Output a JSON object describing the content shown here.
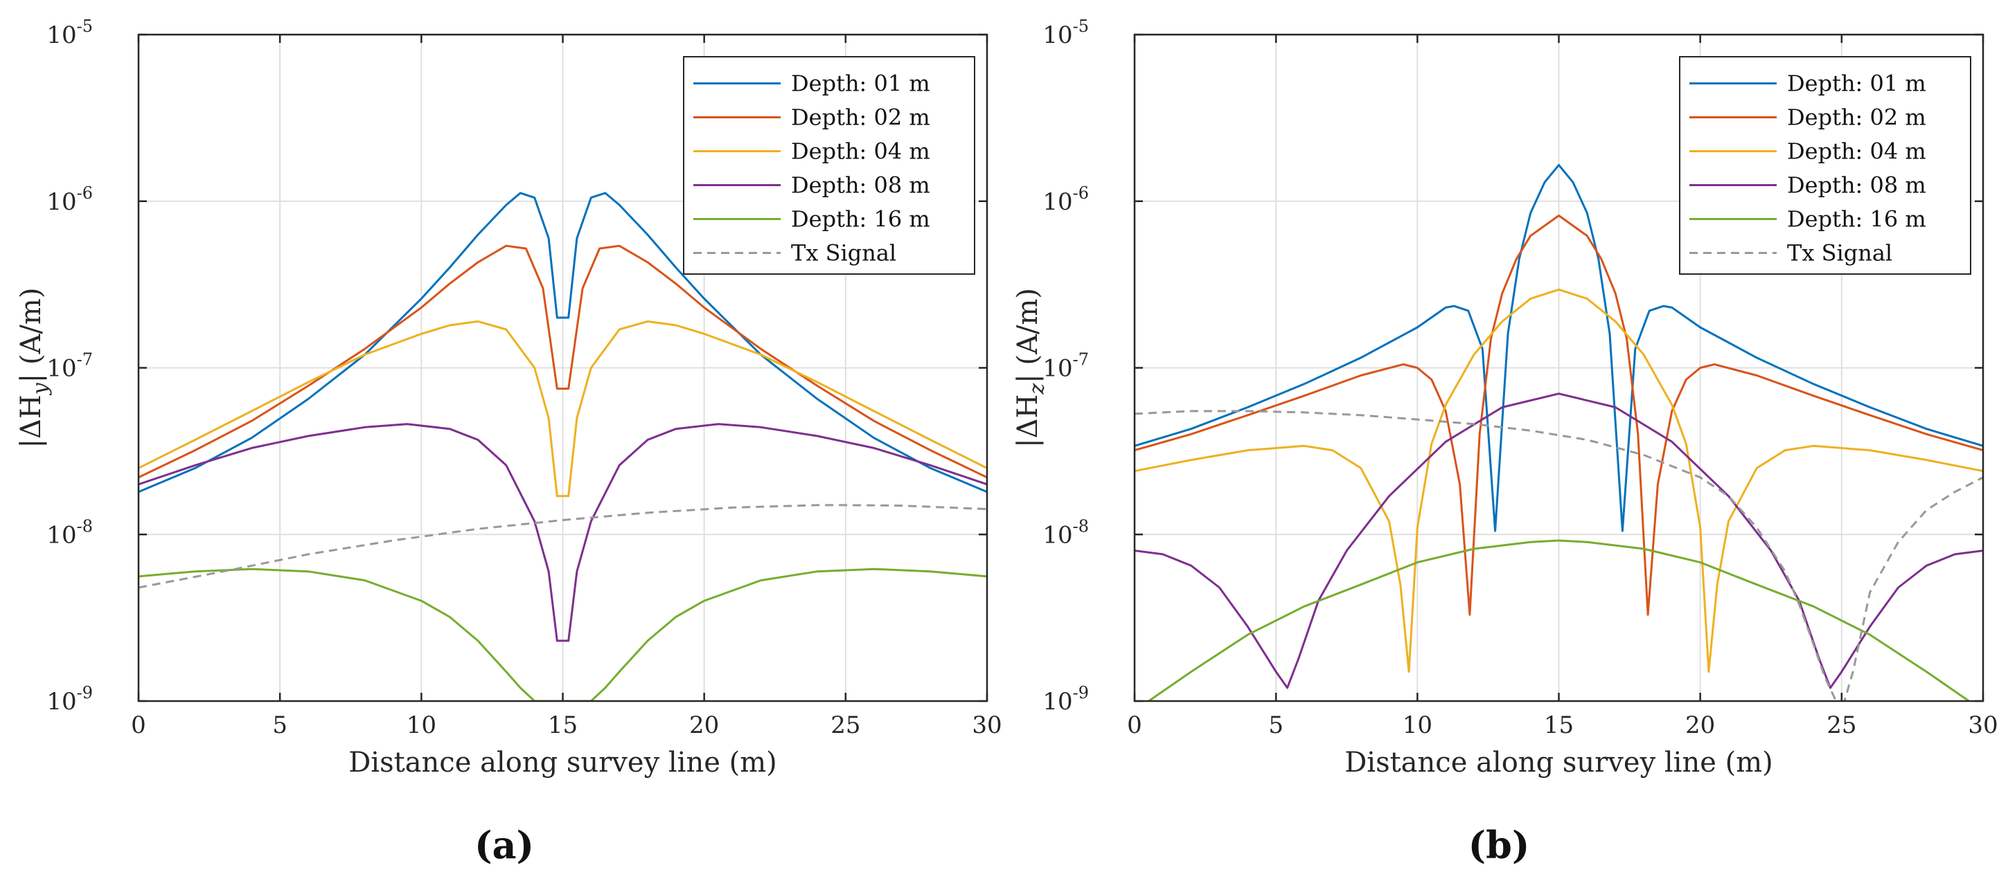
{
  "chart_data": [
    {
      "type": "line",
      "panel_label": "(a)",
      "xlabel": "Distance along survey line (m)",
      "ylabel_text": "|ΔH",
      "ylabel_sub": "y",
      "ylabel_unit": "| (A/m)",
      "xlim": [
        0,
        30
      ],
      "ylim": [
        1e-09,
        1e-05
      ],
      "yscale": "log",
      "grid": true,
      "legend": "top-right",
      "xticks": [
        "0",
        "5",
        "10",
        "15",
        "20",
        "25",
        "30"
      ],
      "yticks": [
        {
          "base": "10",
          "exp": "-9"
        },
        {
          "base": "10",
          "exp": "-8"
        },
        {
          "base": "10",
          "exp": "-7"
        },
        {
          "base": "10",
          "exp": "-6"
        },
        {
          "base": "10",
          "exp": "-5"
        }
      ],
      "series": [
        {
          "name": "Depth: 01 m",
          "color": "#0072BD",
          "dash": false,
          "x": [
            0,
            2,
            4,
            6,
            8,
            10,
            11,
            12,
            13,
            13.5,
            14,
            14.5,
            14.8,
            15.2,
            15.5,
            16,
            16.5,
            17,
            18,
            19,
            20,
            22,
            24,
            26,
            28,
            30
          ],
          "y": [
            1.8e-08,
            2.5e-08,
            3.8e-08,
            6.5e-08,
            1.2e-07,
            2.6e-07,
            4e-07,
            6.3e-07,
            9.5e-07,
            1.12e-06,
            1.05e-06,
            6e-07,
            2e-07,
            2e-07,
            6e-07,
            1.05e-06,
            1.12e-06,
            9.5e-07,
            6.3e-07,
            4e-07,
            2.6e-07,
            1.2e-07,
            6.5e-08,
            3.8e-08,
            2.5e-08,
            1.8e-08
          ]
        },
        {
          "name": "Depth: 02 m",
          "color": "#D95319",
          "dash": false,
          "x": [
            0,
            2,
            4,
            6,
            8,
            10,
            11,
            12,
            13,
            13.7,
            14.3,
            14.8,
            15.2,
            15.7,
            16.3,
            17,
            18,
            19,
            20,
            22,
            24,
            26,
            28,
            30
          ],
          "y": [
            2.2e-08,
            3.2e-08,
            4.8e-08,
            7.8e-08,
            1.3e-07,
            2.3e-07,
            3.2e-07,
            4.3e-07,
            5.4e-07,
            5.2e-07,
            3e-07,
            7.5e-08,
            7.5e-08,
            3e-07,
            5.2e-07,
            5.4e-07,
            4.3e-07,
            3.2e-07,
            2.3e-07,
            1.3e-07,
            7.8e-08,
            4.8e-08,
            3.2e-08,
            2.2e-08
          ]
        },
        {
          "name": "Depth: 04 m",
          "color": "#EDB120",
          "dash": false,
          "x": [
            0,
            2,
            4,
            6,
            8,
            10,
            11,
            12,
            13,
            14,
            14.5,
            14.8,
            15.2,
            15.5,
            16,
            17,
            18,
            19,
            20,
            22,
            24,
            26,
            28,
            30
          ],
          "y": [
            2.5e-08,
            3.7e-08,
            5.5e-08,
            8.2e-08,
            1.2e-07,
            1.6e-07,
            1.8e-07,
            1.9e-07,
            1.7e-07,
            1e-07,
            5e-08,
            1.7e-08,
            1.7e-08,
            5e-08,
            1e-07,
            1.7e-07,
            1.9e-07,
            1.8e-07,
            1.6e-07,
            1.2e-07,
            8.2e-08,
            5.5e-08,
            3.7e-08,
            2.5e-08
          ]
        },
        {
          "name": "Depth: 08 m",
          "color": "#7E2F8E",
          "dash": false,
          "x": [
            0,
            2,
            4,
            6,
            8,
            9.5,
            11,
            12,
            13,
            14,
            14.5,
            14.8,
            15.2,
            15.5,
            16,
            17,
            18,
            19,
            20.5,
            22,
            24,
            26,
            28,
            30
          ],
          "y": [
            2e-08,
            2.6e-08,
            3.3e-08,
            3.9e-08,
            4.4e-08,
            4.6e-08,
            4.3e-08,
            3.7e-08,
            2.6e-08,
            1.2e-08,
            6e-09,
            2.3e-09,
            2.3e-09,
            6e-09,
            1.2e-08,
            2.6e-08,
            3.7e-08,
            4.3e-08,
            4.6e-08,
            4.4e-08,
            3.9e-08,
            3.3e-08,
            2.6e-08,
            2e-08
          ]
        },
        {
          "name": "Depth: 16 m",
          "color": "#77AC30",
          "dash": false,
          "x": [
            0,
            2,
            4,
            6,
            8,
            10,
            11,
            12,
            13,
            13.5,
            14,
            16,
            16.5,
            17,
            18,
            19,
            20,
            22,
            24,
            26,
            28,
            30
          ],
          "y": [
            5.6e-09,
            6e-09,
            6.2e-09,
            6e-09,
            5.3e-09,
            4e-09,
            3.2e-09,
            2.3e-09,
            1.5e-09,
            1.2e-09,
            1e-09,
            1e-09,
            1.2e-09,
            1.5e-09,
            2.3e-09,
            3.2e-09,
            4e-09,
            5.3e-09,
            6e-09,
            6.2e-09,
            6e-09,
            5.6e-09
          ]
        },
        {
          "name": "Tx Signal",
          "color": "#999999",
          "dash": true,
          "x": [
            0,
            3,
            6,
            9,
            12,
            15,
            18,
            21,
            24,
            25,
            27,
            30
          ],
          "y": [
            4.8e-09,
            6e-09,
            7.6e-09,
            9.2e-09,
            1.08e-08,
            1.22e-08,
            1.35e-08,
            1.45e-08,
            1.5e-08,
            1.5e-08,
            1.49e-08,
            1.42e-08
          ]
        }
      ]
    },
    {
      "type": "line",
      "panel_label": "(b)",
      "xlabel": "Distance along survey line (m)",
      "ylabel_text": "|ΔH",
      "ylabel_sub": "z",
      "ylabel_unit": "| (A/m)",
      "xlim": [
        0,
        30
      ],
      "ylim": [
        1e-09,
        1e-05
      ],
      "yscale": "log",
      "grid": true,
      "legend": "top-right",
      "xticks": [
        "0",
        "5",
        "10",
        "15",
        "20",
        "25",
        "30"
      ],
      "yticks": [
        {
          "base": "10",
          "exp": "-9"
        },
        {
          "base": "10",
          "exp": "-8"
        },
        {
          "base": "10",
          "exp": "-7"
        },
        {
          "base": "10",
          "exp": "-6"
        },
        {
          "base": "10",
          "exp": "-5"
        }
      ],
      "series": [
        {
          "name": "Depth: 01 m",
          "color": "#0072BD",
          "dash": false,
          "x": [
            0,
            2,
            4,
            6,
            8,
            10,
            11,
            11.3,
            11.8,
            12.3,
            12.75,
            13.2,
            13.6,
            14,
            14.5,
            15,
            15.5,
            16,
            16.4,
            16.8,
            17.25,
            17.7,
            18.2,
            18.7,
            19,
            20,
            22,
            24,
            26,
            28,
            30
          ],
          "y": [
            3.4e-08,
            4.3e-08,
            5.8e-08,
            8e-08,
            1.15e-07,
            1.75e-07,
            2.3e-07,
            2.35e-07,
            2.2e-07,
            1.3e-07,
            1.05e-08,
            1.6e-07,
            4.5e-07,
            8.5e-07,
            1.3e-06,
            1.65e-06,
            1.3e-06,
            8.5e-07,
            4.5e-07,
            1.6e-07,
            1.05e-08,
            1.3e-07,
            2.2e-07,
            2.35e-07,
            2.3e-07,
            1.75e-07,
            1.15e-07,
            8e-08,
            5.8e-08,
            4.3e-08,
            3.4e-08
          ]
        },
        {
          "name": "Depth: 02 m",
          "color": "#D95319",
          "dash": false,
          "x": [
            0,
            2,
            4,
            6,
            8,
            9.5,
            10,
            10.5,
            11,
            11.5,
            11.85,
            12.2,
            12.6,
            13,
            13.5,
            14,
            15,
            16,
            16.5,
            17,
            17.4,
            17.8,
            18.15,
            18.5,
            19,
            19.5,
            20,
            20.5,
            22,
            24,
            26,
            28,
            30
          ],
          "y": [
            3.2e-08,
            4e-08,
            5.2e-08,
            6.8e-08,
            9e-08,
            1.05e-07,
            1e-07,
            8.5e-08,
            5.5e-08,
            2e-08,
            3.3e-09,
            4e-08,
            1.5e-07,
            2.8e-07,
            4.5e-07,
            6.2e-07,
            8.2e-07,
            6.2e-07,
            4.5e-07,
            2.8e-07,
            1.5e-07,
            4e-08,
            3.3e-09,
            2e-08,
            5.5e-08,
            8.5e-08,
            1e-07,
            1.05e-07,
            9e-08,
            6.8e-08,
            5.2e-08,
            4e-08,
            3.2e-08
          ]
        },
        {
          "name": "Depth: 04 m",
          "color": "#EDB120",
          "dash": false,
          "x": [
            0,
            2,
            4,
            6,
            7,
            8,
            9,
            9.4,
            9.7,
            10,
            10.5,
            11,
            12,
            13,
            14,
            15,
            16,
            17,
            18,
            19,
            19.5,
            20,
            20.3,
            20.6,
            21,
            22,
            23,
            24,
            26,
            28,
            30
          ],
          "y": [
            2.4e-08,
            2.8e-08,
            3.2e-08,
            3.4e-08,
            3.2e-08,
            2.5e-08,
            1.2e-08,
            5e-09,
            1.5e-09,
            1.1e-08,
            3.5e-08,
            6e-08,
            1.2e-07,
            1.9e-07,
            2.6e-07,
            2.95e-07,
            2.6e-07,
            1.9e-07,
            1.2e-07,
            6e-08,
            3.5e-08,
            1.1e-08,
            1.5e-09,
            5e-09,
            1.2e-08,
            2.5e-08,
            3.2e-08,
            3.4e-08,
            3.2e-08,
            2.8e-08,
            2.4e-08
          ]
        },
        {
          "name": "Depth: 08 m",
          "color": "#7E2F8E",
          "dash": false,
          "x": [
            0,
            1,
            2,
            3,
            4,
            5,
            5.4,
            5.8,
            6.5,
            7.5,
            9,
            11,
            13,
            15,
            17,
            19,
            21,
            22.5,
            23.5,
            24.2,
            24.6,
            25,
            26,
            27,
            28,
            29,
            30
          ],
          "y": [
            8e-09,
            7.6e-09,
            6.5e-09,
            4.8e-09,
            2.8e-09,
            1.5e-09,
            1.2e-09,
            1.8e-09,
            4e-09,
            8e-09,
            1.7e-08,
            3.6e-08,
            5.8e-08,
            7e-08,
            5.8e-08,
            3.6e-08,
            1.7e-08,
            8e-09,
            4e-09,
            1.8e-09,
            1.2e-09,
            1.5e-09,
            2.8e-09,
            4.8e-09,
            6.5e-09,
            7.6e-09,
            8e-09
          ]
        },
        {
          "name": "Depth: 16 m",
          "color": "#77AC30",
          "dash": false,
          "x": [
            0.5,
            2,
            4,
            6,
            8,
            10,
            12,
            14,
            15,
            16,
            18,
            20,
            22,
            24,
            26,
            28,
            29.5
          ],
          "y": [
            1e-09,
            1.5e-09,
            2.5e-09,
            3.7e-09,
            5e-09,
            6.8e-09,
            8.2e-09,
            9e-09,
            9.2e-09,
            9e-09,
            8.2e-09,
            6.8e-09,
            5e-09,
            3.7e-09,
            2.5e-09,
            1.5e-09,
            1e-09
          ]
        },
        {
          "name": "Tx Signal",
          "color": "#999999",
          "dash": true,
          "x": [
            0,
            2,
            4,
            6,
            8,
            10,
            12,
            14,
            16,
            18,
            20,
            21,
            22,
            23,
            23.5,
            24,
            24.4,
            24.8,
            25.1,
            25.4,
            26,
            27,
            28,
            29,
            30
          ],
          "y": [
            5.3e-08,
            5.5e-08,
            5.5e-08,
            5.4e-08,
            5.2e-08,
            4.9e-08,
            4.6e-08,
            4.2e-08,
            3.7e-08,
            3e-08,
            2.2e-08,
            1.7e-08,
            1.1e-08,
            6e-09,
            3.8e-09,
            2.2e-09,
            1.4e-09,
            1e-09,
            1e-09,
            1.5e-09,
            4.5e-09,
            9e-09,
            1.4e-08,
            1.8e-08,
            2.2e-08
          ]
        }
      ]
    }
  ]
}
